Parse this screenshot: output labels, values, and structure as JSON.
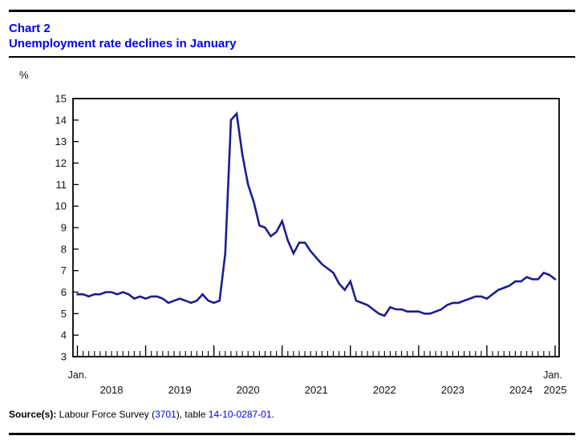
{
  "page": {
    "chart_label": "Chart 2",
    "title": "Unemployment rate declines in January",
    "y_unit": "%",
    "source": {
      "prefix": "Source(s):",
      "text1": " Labour Force Survey (",
      "link1": "3701",
      "text2": "), table ",
      "link2": "14-10-0287-01",
      "text3": "."
    }
  },
  "colors": {
    "title_blue": "#0000EE",
    "link_blue": "#0000EE",
    "line_navy": "#1C1C90",
    "axis_black": "#000000"
  },
  "chart_data": {
    "type": "line",
    "title": "Unemployment rate declines in January",
    "ylabel": "%",
    "ylim": [
      3,
      15
    ],
    "ytick_step": 1,
    "grid": false,
    "legend_position": "none",
    "x_unit": "month",
    "x_range": [
      "Jan. 2018",
      "Jan. 2025"
    ],
    "x_jan_tick_label": "Jan.",
    "x_year_labels": [
      "2018",
      "2019",
      "2020",
      "2021",
      "2022",
      "2023",
      "2024",
      "2025"
    ],
    "series": [
      {
        "name": "Unemployment rate (%)",
        "start": "2018-01",
        "frequency": "monthly",
        "values": [
          5.9,
          5.9,
          5.8,
          5.9,
          5.9,
          6.0,
          6.0,
          5.9,
          6.0,
          5.9,
          5.7,
          5.8,
          5.7,
          5.8,
          5.8,
          5.7,
          5.5,
          5.6,
          5.7,
          5.6,
          5.5,
          5.6,
          5.9,
          5.6,
          5.5,
          5.6,
          7.8,
          14.0,
          14.3,
          12.4,
          11.0,
          10.2,
          9.1,
          9.0,
          8.6,
          8.8,
          9.3,
          8.4,
          7.8,
          8.3,
          8.3,
          7.9,
          7.6,
          7.3,
          7.1,
          6.9,
          6.4,
          6.1,
          6.5,
          5.6,
          5.5,
          5.4,
          5.2,
          5.0,
          4.9,
          5.3,
          5.2,
          5.2,
          5.1,
          5.1,
          5.1,
          5.0,
          5.0,
          5.1,
          5.2,
          5.4,
          5.5,
          5.5,
          5.6,
          5.7,
          5.8,
          5.8,
          5.7,
          5.9,
          6.1,
          6.2,
          6.3,
          6.5,
          6.5,
          6.7,
          6.6,
          6.6,
          6.9,
          6.8,
          6.6
        ]
      }
    ]
  }
}
